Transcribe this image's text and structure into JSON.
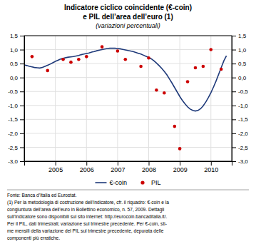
{
  "chart_data": {
    "type": "line",
    "title": [
      "Indicatore ciclico coincidente (€-coin)",
      "e PIL dell’area dell’euro (1)"
    ],
    "subtitle": "(variazioni percentuali)",
    "series": [
      {
        "name": "€-coin",
        "type": "line",
        "color": "#1f3a7a",
        "x": [
          2004.0,
          2004.083,
          2004.167,
          2004.25,
          2004.333,
          2004.417,
          2004.5,
          2004.583,
          2004.667,
          2004.75,
          2004.833,
          2004.917,
          2005.0,
          2005.083,
          2005.167,
          2005.25,
          2005.333,
          2005.417,
          2005.5,
          2005.583,
          2005.667,
          2005.75,
          2005.833,
          2005.917,
          2006.0,
          2006.083,
          2006.167,
          2006.25,
          2006.333,
          2006.417,
          2006.5,
          2006.583,
          2006.667,
          2006.75,
          2006.833,
          2006.917,
          2007.0,
          2007.083,
          2007.167,
          2007.25,
          2007.333,
          2007.417,
          2007.5,
          2007.583,
          2007.667,
          2007.75,
          2007.833,
          2007.917,
          2008.0,
          2008.083,
          2008.167,
          2008.25,
          2008.333,
          2008.417,
          2008.5,
          2008.583,
          2008.667,
          2008.75,
          2008.833,
          2008.917,
          2009.0,
          2009.083,
          2009.167,
          2009.25,
          2009.333,
          2009.417,
          2009.5,
          2009.583,
          2009.667,
          2009.75,
          2009.833,
          2009.917,
          2010.0,
          2010.083,
          2010.167,
          2010.25,
          2010.333,
          2010.417,
          2010.5
        ],
        "values": [
          0.45,
          0.43,
          0.4,
          0.38,
          0.36,
          0.35,
          0.34,
          0.36,
          0.4,
          0.44,
          0.48,
          0.53,
          0.58,
          0.62,
          0.66,
          0.69,
          0.71,
          0.73,
          0.74,
          0.75,
          0.77,
          0.79,
          0.82,
          0.84,
          0.86,
          0.88,
          0.91,
          0.93,
          0.96,
          0.98,
          1.0,
          1.02,
          1.04,
          1.05,
          1.05,
          1.05,
          1.04,
          1.03,
          1.01,
          0.99,
          0.97,
          0.95,
          0.93,
          0.9,
          0.87,
          0.84,
          0.8,
          0.76,
          0.72,
          0.67,
          0.6,
          0.52,
          0.43,
          0.33,
          0.22,
          0.1,
          -0.05,
          -0.2,
          -0.36,
          -0.52,
          -0.68,
          -0.82,
          -0.94,
          -1.05,
          -1.13,
          -1.18,
          -1.2,
          -1.18,
          -1.12,
          -1.02,
          -0.88,
          -0.72,
          -0.54,
          -0.34,
          -0.12,
          0.12,
          0.36,
          0.6,
          0.78
        ]
      },
      {
        "name": "PIL",
        "type": "scatter",
        "color": "#cc0000",
        "x": [
          2004.25,
          2004.75,
          2005.25,
          2005.5,
          2005.75,
          2006.0,
          2006.5,
          2007.0,
          2007.25,
          2007.75,
          2008.0,
          2008.25,
          2008.5,
          2008.833,
          2009.0,
          2009.25,
          2009.5,
          2009.75,
          2010.0,
          2010.33
        ],
        "values": [
          0.75,
          0.25,
          0.65,
          0.55,
          0.65,
          0.75,
          1.1,
          0.95,
          0.65,
          0.4,
          0.7,
          -0.45,
          -0.55,
          -1.75,
          -2.55,
          -0.15,
          0.35,
          0.4,
          1.0,
          0.3
        ]
      }
    ],
    "xlim": [
      2004.0,
      2010.67
    ],
    "xticks": [
      2005,
      2006,
      2007,
      2008,
      2009,
      2010
    ],
    "ylim": [
      -3.0,
      1.5
    ],
    "yticks": [
      {
        "value": -3.0,
        "label": "-3,0"
      },
      {
        "value": -2.5,
        "label": "-2,5"
      },
      {
        "value": -2.0,
        "label": "-2,0"
      },
      {
        "value": -1.5,
        "label": "-1,5"
      },
      {
        "value": -1.0,
        "label": "-1,0"
      },
      {
        "value": -0.5,
        "label": "-0,5"
      },
      {
        "value": 0.0,
        "label": "0,0"
      },
      {
        "value": 0.5,
        "label": "0,5"
      },
      {
        "value": 1.0,
        "label": "1,0"
      },
      {
        "value": 1.5,
        "label": "1,5"
      }
    ],
    "y2lim": [
      -3.0,
      1.5
    ],
    "y2ticks": [
      {
        "value": -3.0,
        "label": "-3,0"
      },
      {
        "value": -2.5,
        "label": "-2,5"
      },
      {
        "value": -2.0,
        "label": "-2,0"
      },
      {
        "value": -1.5,
        "label": "-1,5"
      },
      {
        "value": -1.0,
        "label": "-1,0"
      },
      {
        "value": -0.5,
        "label": "-0,5"
      },
      {
        "value": 0.0,
        "label": "0,0"
      },
      {
        "value": 0.5,
        "label": "0,5"
      },
      {
        "value": 1.0,
        "label": "1,0"
      },
      {
        "value": 1.5,
        "label": "1,5"
      }
    ],
    "grid": true,
    "legend": "bottom",
    "annotations": [
      "Fonte: Banca d’Italia ed Eurostat.",
      "(1) Per la metodologia di costruzione dell’indicatore, cfr. il riquadro: €-coin e la",
      "congiuntura dell’area dell’euro in Bollettino economico, n. 57, 2009. Dettagli",
      "sull’indicatore sono disponibili sul sito internet: http://eurocoin.bancaditalia.it/.",
      "Per il PIL, dati trimestrali; variazione sul trimestre precedente. Per €-coin, sti-",
      "me mensili della variazione del PIL sul trimestre precedente, depurata delle",
      "componenti più erratiche."
    ]
  }
}
